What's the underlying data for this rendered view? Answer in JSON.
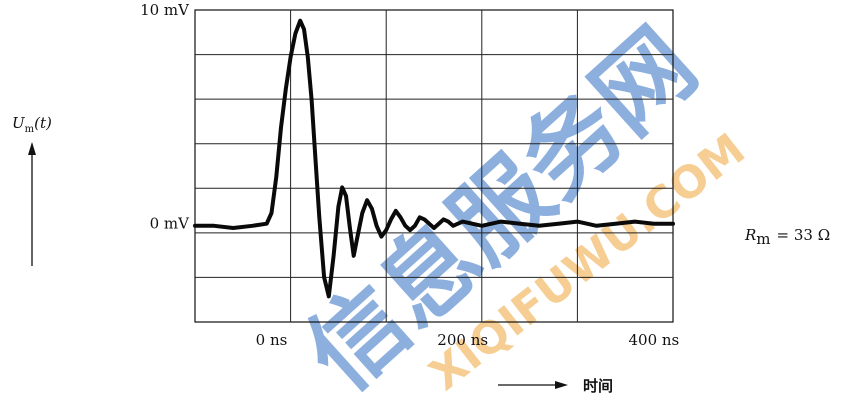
{
  "chart_data": {
    "type": "line",
    "ylabel": {
      "main": "U",
      "sub": "m",
      "tail": "(t)"
    },
    "xlabel": "时间",
    "x_unit": "ns",
    "y_unit": "mV",
    "xlim": [
      -80,
      420
    ],
    "ylim": [
      -4.6,
      10
    ],
    "x_ticks": [
      {
        "value": 0,
        "label": "0 ns"
      },
      {
        "value": 200,
        "label": "200 ns"
      },
      {
        "value": 400,
        "label": "400 ns"
      }
    ],
    "y_ticks": [
      {
        "value": 10,
        "label": "10 mV"
      },
      {
        "value": 0,
        "label": "0 mV"
      }
    ],
    "annotation": {
      "r": "R",
      "sub": "m",
      "rest": "= 33 Ω"
    },
    "grid": true,
    "series": [
      {
        "x": [
          -80,
          -60,
          -40,
          -20,
          -5,
          0,
          5,
          10,
          15,
          20,
          25,
          30,
          34,
          38,
          42,
          46,
          50,
          55,
          60,
          65,
          70,
          74,
          78,
          82,
          86,
          90,
          95,
          100,
          105,
          110,
          115,
          120,
          125,
          130,
          135,
          140,
          145,
          150,
          155,
          160,
          165,
          170,
          175,
          180,
          185,
          190,
          195,
          200,
          210,
          220,
          230,
          240,
          260,
          280,
          300,
          320,
          340,
          360,
          380,
          400,
          420
        ],
        "y": [
          -0.1,
          -0.1,
          -0.2,
          -0.1,
          0.0,
          0.5,
          2.2,
          4.5,
          6.3,
          7.8,
          8.9,
          9.5,
          9.1,
          7.8,
          5.8,
          3.0,
          0.3,
          -2.5,
          -3.4,
          -1.5,
          0.8,
          1.7,
          1.3,
          -0.2,
          -1.5,
          -0.6,
          0.5,
          1.1,
          0.7,
          -0.1,
          -0.6,
          -0.3,
          0.2,
          0.6,
          0.3,
          -0.1,
          -0.3,
          -0.1,
          0.3,
          0.2,
          0.0,
          -0.2,
          0.0,
          0.2,
          0.1,
          -0.1,
          0.0,
          0.1,
          0.0,
          -0.1,
          0.0,
          0.1,
          0.0,
          -0.1,
          0.0,
          0.1,
          -0.1,
          0.0,
          0.1,
          0.0,
          0.0
        ]
      }
    ]
  },
  "watermark": {
    "main_text": "信息服务网",
    "sub_text": "XIQIFUWU.COM",
    "color_blue": "#2f6fc4",
    "color_orange": "#f0a63a"
  }
}
